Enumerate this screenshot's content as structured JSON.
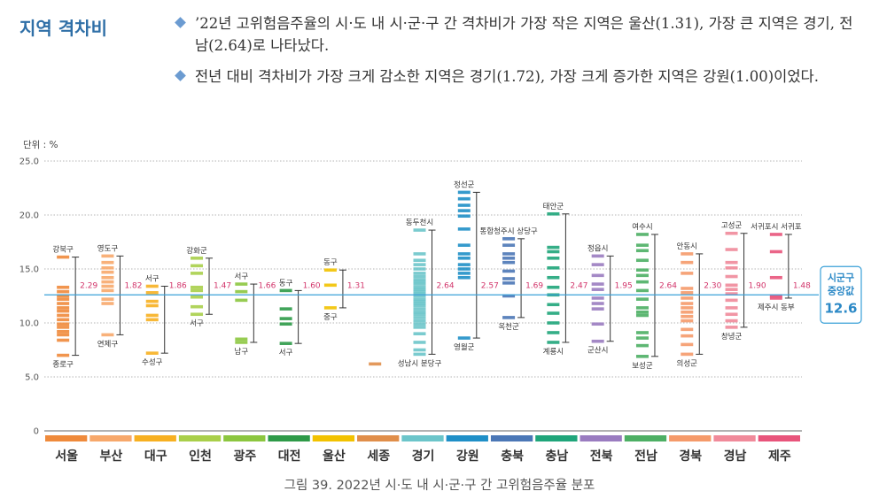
{
  "title": "지역 격차비",
  "bullets": [
    "’22년 고위험음주율의 시·도 내 시·군·구 간 격차비가 가장 작은 지역은 울산(1.31), 가장 큰 지역은 경기, 전남(2.64)로 나타났다.",
    "전년 대비 격차비가 가장 크게 감소한 지역은 경기(1.72), 가장 크게 증가한 지역은 강원(1.00)이었다."
  ],
  "caption": "그림 39.  2022년 시·도 내 시·군·구 간 고위험음주율 분포",
  "chart_data": {
    "type": "range",
    "unit_label": "단위 : %",
    "ylim": [
      0,
      25
    ],
    "yticks": [
      "0",
      "5.0",
      "10.0",
      "15.0",
      "20.0",
      "25.0"
    ],
    "reference": {
      "value": 12.6,
      "label_lines": [
        "시군구",
        "중앙값",
        "12.6"
      ]
    },
    "regions": [
      {
        "name": "서울",
        "color": "#ef8a3b",
        "min": 7.0,
        "max": 16.1,
        "ratio": "2.29",
        "max_label": "강북구",
        "min_label": "종로구",
        "values": [
          7.0,
          8.4,
          8.9,
          9.2,
          9.6,
          9.9,
          10.3,
          10.7,
          11.1,
          11.4,
          11.8,
          12.2,
          12.5,
          12.9,
          13.3,
          16.1
        ]
      },
      {
        "name": "부산",
        "color": "#f7a86b",
        "min": 8.9,
        "max": 16.2,
        "ratio": "1.82",
        "max_label": "영도구",
        "min_label": "연제구",
        "values": [
          8.9,
          11.8,
          12.2,
          13.0,
          13.4,
          13.8,
          14.2,
          14.7,
          15.1,
          15.6,
          16.2
        ]
      },
      {
        "name": "대구",
        "color": "#f7b021",
        "min": 7.2,
        "max": 13.4,
        "ratio": "1.86",
        "max_label": "서구",
        "min_label": "수성구",
        "values": [
          7.2,
          10.3,
          10.7,
          11.6,
          12.0,
          12.8,
          13.4
        ]
      },
      {
        "name": "인천",
        "color": "#a9cf4a",
        "min": 10.8,
        "max": 16.0,
        "ratio": "1.47",
        "max_label": "강화군",
        "min_label": "서구",
        "values": [
          10.8,
          11.5,
          12.4,
          13.0,
          13.3,
          14.6,
          15.3,
          16.0
        ]
      },
      {
        "name": "광주",
        "color": "#8cc63f",
        "min": 8.2,
        "max": 13.6,
        "ratio": "1.66",
        "max_label": "서구",
        "min_label": "남구",
        "values": [
          8.2,
          8.5,
          12.1,
          12.9,
          13.6
        ]
      },
      {
        "name": "대전",
        "color": "#2e9a48",
        "min": 8.1,
        "max": 13.0,
        "ratio": "1.60",
        "max_label": "동구",
        "min_label": "서구",
        "values": [
          8.1,
          9.9,
          10.4,
          11.3,
          13.0
        ]
      },
      {
        "name": "울산",
        "color": "#f2c200",
        "min": 11.4,
        "max": 14.9,
        "ratio": "1.31",
        "max_label": "동구",
        "min_label": "중구",
        "values": [
          11.4,
          13.5,
          14.9
        ]
      },
      {
        "name": "세종",
        "color": "#e08e4a",
        "min": 6.2,
        "max": 6.2,
        "ratio": "",
        "max_label": "",
        "min_label": "",
        "values": [
          6.2
        ]
      },
      {
        "name": "경기",
        "color": "#6cc5ca",
        "min": 7.1,
        "max": 18.6,
        "ratio": "2.64",
        "max_label": "동두천시",
        "min_label": "성남시 분당구",
        "values": [
          7.1,
          7.5,
          8.2,
          9.0,
          9.6,
          9.9,
          10.2,
          10.5,
          10.8,
          11.0,
          11.3,
          11.6,
          11.8,
          12.0,
          12.2,
          12.5,
          12.7,
          12.9,
          13.1,
          13.3,
          13.6,
          13.8,
          14.0,
          14.3,
          14.6,
          15.0,
          15.4,
          15.8,
          16.4,
          18.6
        ]
      },
      {
        "name": "강원",
        "color": "#1f8fc7",
        "min": 8.6,
        "max": 22.1,
        "ratio": "2.57",
        "max_label": "정선군",
        "min_label": "영월군",
        "values": [
          8.6,
          14.2,
          14.6,
          15.0,
          15.4,
          16.0,
          16.4,
          17.2,
          18.7,
          19.9,
          20.4,
          20.9,
          21.5,
          22.1
        ]
      },
      {
        "name": "충북",
        "color": "#4b77b6",
        "min": 10.5,
        "max": 17.8,
        "ratio": "1.69",
        "max_label": "통합청주시 상당구",
        "min_label": "옥천군",
        "values": [
          10.5,
          12.5,
          13.7,
          14.1,
          14.8,
          15.6,
          16.0,
          16.4,
          17.2,
          17.8
        ]
      },
      {
        "name": "충남",
        "color": "#1fa57a",
        "min": 8.2,
        "max": 20.1,
        "ratio": "2.47",
        "max_label": "태안군",
        "min_label": "계룡시",
        "values": [
          8.2,
          9.1,
          10.0,
          10.9,
          11.7,
          12.6,
          13.3,
          14.2,
          15.1,
          16.0,
          16.6,
          17.0,
          20.1
        ]
      },
      {
        "name": "전북",
        "color": "#9a7cc0",
        "min": 8.3,
        "max": 16.2,
        "ratio": "1.95",
        "max_label": "정읍시",
        "min_label": "군산시",
        "values": [
          8.3,
          9.9,
          11.3,
          11.8,
          12.3,
          13.1,
          13.6,
          14.4,
          15.4,
          16.2
        ]
      },
      {
        "name": "전남",
        "color": "#4daf64",
        "min": 6.9,
        "max": 18.2,
        "ratio": "2.64",
        "max_label": "여수시",
        "min_label": "보성군",
        "values": [
          6.9,
          7.9,
          8.6,
          9.1,
          10.7,
          11.0,
          11.4,
          12.2,
          13.0,
          13.8,
          14.4,
          14.9,
          15.8,
          16.7,
          17.2,
          18.2
        ]
      },
      {
        "name": "경북",
        "color": "#f59a6a",
        "min": 7.1,
        "max": 16.4,
        "ratio": "2.30",
        "max_label": "안동시",
        "min_label": "의성군",
        "values": [
          7.1,
          8.0,
          8.8,
          9.4,
          10.2,
          10.6,
          11.0,
          11.4,
          11.8,
          12.3,
          12.8,
          13.2,
          14.6,
          15.6,
          16.4
        ]
      },
      {
        "name": "경남",
        "color": "#f08a9a",
        "min": 9.6,
        "max": 18.3,
        "ratio": "1.90",
        "max_label": "고성군",
        "min_label": "창녕군",
        "values": [
          9.6,
          10.2,
          10.8,
          11.4,
          12.1,
          12.7,
          13.1,
          13.5,
          14.3,
          15.1,
          15.6,
          16.8,
          18.3
        ]
      },
      {
        "name": "제주",
        "color": "#e8547b",
        "min": 12.3,
        "max": 18.2,
        "ratio": "1.48",
        "max_label": "서귀포시 서귀포",
        "min_label": "제주시 동부",
        "values": [
          12.3,
          12.5,
          14.2,
          16.6,
          18.2
        ]
      }
    ]
  }
}
